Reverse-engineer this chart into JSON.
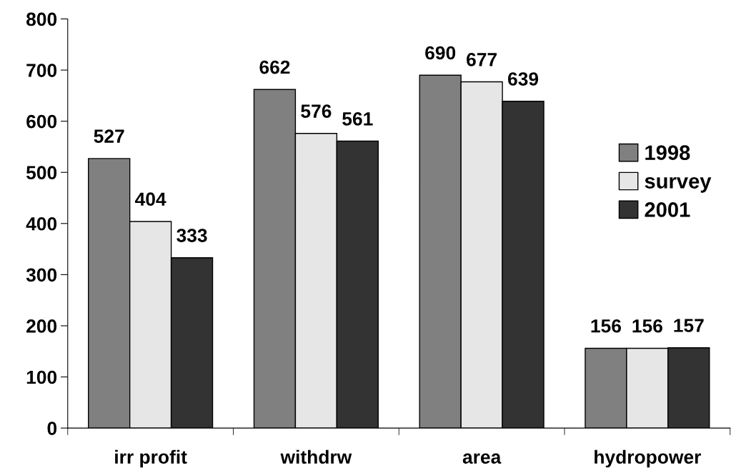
{
  "chart_data": {
    "type": "bar",
    "categories": [
      "irr profit",
      "withdrw",
      "area",
      "hydropower"
    ],
    "series": [
      {
        "name": "1998",
        "color": "#808080",
        "values": [
          527,
          662,
          690,
          156
        ]
      },
      {
        "name": "survey",
        "color": "#e6e6e6",
        "values": [
          404,
          576,
          677,
          156
        ]
      },
      {
        "name": "2001",
        "color": "#333333",
        "values": [
          333,
          561,
          639,
          157
        ]
      }
    ],
    "ylim": [
      0,
      800
    ],
    "yticks": [
      0,
      100,
      200,
      300,
      400,
      500,
      600,
      700,
      800
    ],
    "data_labels": true,
    "grid": false,
    "legend": "right"
  }
}
